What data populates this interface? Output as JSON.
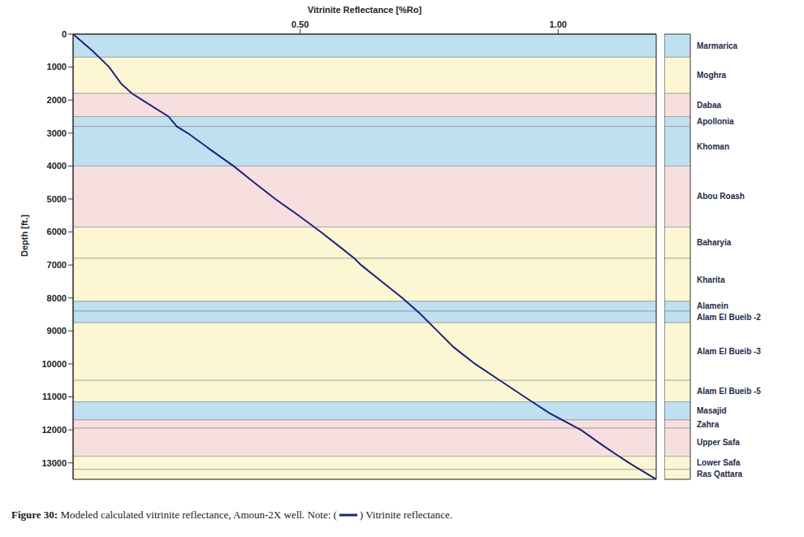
{
  "chart_data": {
    "type": "line",
    "title": "Figure 30: Modeled calculated vitrinite reflectance, Amoun-2X well.",
    "note": {
      "before": "Note: (",
      "after": ") Vitrinite reflectance."
    },
    "x_label": "Vitrinite Reflectance [%Ro]",
    "y_label": "Depth [ft.]",
    "xlim": [
      0.06,
      1.19
    ],
    "xticks": [
      {
        "value": 0.5,
        "label": "0.50"
      },
      {
        "value": 1,
        "label": "1.00"
      }
    ],
    "ylim": [
      0,
      13500
    ],
    "yticks": [
      0,
      1000,
      2000,
      3000,
      4000,
      5000,
      6000,
      7000,
      8000,
      9000,
      10000,
      11000,
      12000,
      13000
    ],
    "grid": false,
    "series": [
      {
        "name": "Vitrinite reflectance",
        "color": "#1a237e",
        "x": [
          0.06,
          0.097,
          0.13,
          0.153,
          0.174,
          0.194,
          0.245,
          0.261,
          0.282,
          0.326,
          0.371,
          0.411,
          0.452,
          0.497,
          0.54,
          0.581,
          0.605,
          0.618,
          0.658,
          0.698,
          0.734,
          0.766,
          0.798,
          0.839,
          0.887,
          0.935,
          0.984,
          1.044,
          1.089,
          1.137,
          1.19
        ],
        "values": [
          0,
          500,
          1000,
          1500,
          1800,
          2000,
          2500,
          2800,
          3000,
          3500,
          4000,
          4500,
          5000,
          5500,
          6000,
          6500,
          6800,
          7000,
          7500,
          8000,
          8500,
          9000,
          9500,
          10000,
          10500,
          11000,
          11500,
          12000,
          12500,
          13000,
          13500
        ]
      }
    ],
    "formations": [
      {
        "name": "Marmarica",
        "top": 0,
        "base": 700,
        "color": "#bfe0f1"
      },
      {
        "name": "Moghra",
        "top": 700,
        "base": 1800,
        "color": "#fcf7d2"
      },
      {
        "name": "Dabaa",
        "top": 1800,
        "base": 2500,
        "color": "#f8dfdf"
      },
      {
        "name": "Apollonia",
        "top": 2500,
        "base": 2800,
        "color": "#bfe0f1"
      },
      {
        "name": "Khoman",
        "top": 2800,
        "base": 4000,
        "color": "#bfe0f1"
      },
      {
        "name": "Abou Roash",
        "top": 4000,
        "base": 5850,
        "color": "#f8dfdf"
      },
      {
        "name": "Baharyia",
        "top": 5850,
        "base": 6800,
        "color": "#fcf7d2"
      },
      {
        "name": "Kharita",
        "top": 6800,
        "base": 8100,
        "color": "#fcf7d2"
      },
      {
        "name": "Alamein",
        "top": 8100,
        "base": 8400,
        "color": "#bfe0f1"
      },
      {
        "name": "Alam El Bueib -2",
        "top": 8400,
        "base": 8750,
        "color": "#bfe0f1"
      },
      {
        "name": "Alam El Bueib -3",
        "top": 8750,
        "base": 10500,
        "color": "#fcf7d2"
      },
      {
        "name": "Alam El Bueib -5",
        "top": 10500,
        "base": 11150,
        "color": "#fcf7d2"
      },
      {
        "name": "Masajid",
        "top": 11150,
        "base": 11700,
        "color": "#bfe0f1"
      },
      {
        "name": "Zahra",
        "top": 11700,
        "base": 11950,
        "color": "#f8dfdf"
      },
      {
        "name": "Upper Safa",
        "top": 11950,
        "base": 12800,
        "color": "#f8dfdf"
      },
      {
        "name": "Lower Safa",
        "top": 12800,
        "base": 13200,
        "color": "#fcf7d2"
      },
      {
        "name": "Ras Qattara",
        "top": 13200,
        "base": 13500,
        "color": "#fcf7d2"
      }
    ]
  }
}
